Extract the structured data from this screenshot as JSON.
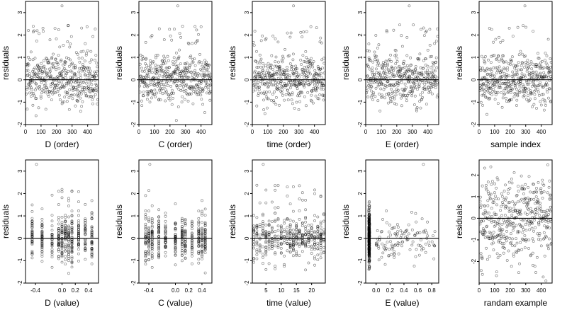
{
  "chart_data": [
    {
      "type": "scatter",
      "xlabel": "D (order)",
      "ylabel": "residuals",
      "xlim": [
        0,
        470
      ],
      "ylim": [
        -2,
        3.5
      ],
      "xticks": [
        0,
        100,
        200,
        300,
        400
      ],
      "xtick_labels": [
        "0",
        "100",
        "200",
        "300",
        "400"
      ],
      "yticks": [
        -2,
        -1,
        0,
        1,
        2,
        3
      ],
      "ytick_labels": [
        "-2",
        "-1",
        "0",
        "1",
        "2",
        "3"
      ],
      "hline": 0,
      "dist": "order",
      "seed": 11
    },
    {
      "type": "scatter",
      "xlabel": "C (order)",
      "ylabel": "residuals",
      "xlim": [
        0,
        470
      ],
      "ylim": [
        -2,
        3.5
      ],
      "xticks": [
        0,
        100,
        200,
        300,
        400
      ],
      "xtick_labels": [
        "0",
        "100",
        "200",
        "300",
        "400"
      ],
      "yticks": [
        -2,
        -1,
        0,
        1,
        2,
        3
      ],
      "ytick_labels": [
        "-2",
        "-1",
        "0",
        "1",
        "2",
        "3"
      ],
      "hline": 0,
      "dist": "order",
      "seed": 12
    },
    {
      "type": "scatter",
      "xlabel": "time (order)",
      "ylabel": "residuals",
      "xlim": [
        0,
        470
      ],
      "ylim": [
        -2,
        3.5
      ],
      "xticks": [
        0,
        100,
        200,
        300,
        400
      ],
      "xtick_labels": [
        "0",
        "100",
        "200",
        "300",
        "400"
      ],
      "yticks": [
        -2,
        -1,
        0,
        1,
        2,
        3
      ],
      "ytick_labels": [
        "-2",
        "-1",
        "0",
        "1",
        "2",
        "3"
      ],
      "hline": 0,
      "dist": "order",
      "seed": 13
    },
    {
      "type": "scatter",
      "xlabel": "E (order)",
      "ylabel": "residuals",
      "xlim": [
        0,
        470
      ],
      "ylim": [
        -2,
        3.5
      ],
      "xticks": [
        0,
        100,
        200,
        300,
        400
      ],
      "xtick_labels": [
        "0",
        "100",
        "200",
        "300",
        "400"
      ],
      "yticks": [
        -2,
        -1,
        0,
        1,
        2,
        3
      ],
      "ytick_labels": [
        "-2",
        "-1",
        "0",
        "1",
        "2",
        "3"
      ],
      "hline": 0,
      "dist": "order",
      "seed": 14
    },
    {
      "type": "scatter",
      "xlabel": "sample index",
      "ylabel": "residuals",
      "xlim": [
        0,
        470
      ],
      "ylim": [
        -2,
        3.5
      ],
      "xticks": [
        0,
        100,
        200,
        300,
        400
      ],
      "xtick_labels": [
        "0",
        "100",
        "200",
        "300",
        "400"
      ],
      "yticks": [
        -2,
        -1,
        0,
        1,
        2,
        3
      ],
      "ytick_labels": [
        "-2",
        "-1",
        "0",
        "1",
        "2",
        "3"
      ],
      "hline": 0,
      "dist": "order",
      "seed": 15
    },
    {
      "type": "scatter",
      "xlabel": "D (value)",
      "ylabel": "residuals",
      "xlim": [
        -0.55,
        0.55
      ],
      "ylim": [
        -2,
        3.5
      ],
      "xticks": [
        -0.4,
        0,
        0.2,
        0.4
      ],
      "xtick_labels": [
        "-0.4",
        "0.0",
        "0.2",
        "0.4"
      ],
      "yticks": [
        -2,
        -1,
        0,
        1,
        2,
        3
      ],
      "ytick_labels": [
        "-2",
        "-1",
        "0",
        "1",
        "2",
        "3"
      ],
      "hline": 0,
      "dist": "discrete",
      "levels": [
        -0.45,
        -0.3,
        -0.15,
        -0.05,
        0,
        0.05,
        0.1,
        0.15,
        0.25,
        0.35,
        0.45
      ],
      "seed": 21
    },
    {
      "type": "scatter",
      "xlabel": "C (value)",
      "ylabel": "residuals",
      "xlim": [
        -0.55,
        0.55
      ],
      "ylim": [
        -2,
        3.5
      ],
      "xticks": [
        -0.4,
        0,
        0.2,
        0.4
      ],
      "xtick_labels": [
        "-0.4",
        "0.0",
        "0.2",
        "0.4"
      ],
      "yticks": [
        -2,
        -1,
        0,
        1,
        2,
        3
      ],
      "ytick_labels": [
        "-2",
        "-1",
        "0",
        "1",
        "2",
        "3"
      ],
      "hline": 0,
      "dist": "discrete",
      "levels": [
        -0.45,
        -0.4,
        -0.35,
        -0.25,
        -0.15,
        0,
        0.1,
        0.15,
        0.25,
        0.35,
        0.4,
        0.45
      ],
      "seed": 22
    },
    {
      "type": "scatter",
      "xlabel": "time (value)",
      "ylabel": "residuals",
      "xlim": [
        0.5,
        24.5
      ],
      "ylim": [
        -2,
        3.5
      ],
      "xticks": [
        5,
        10,
        15,
        20
      ],
      "xtick_labels": [
        "5",
        "10",
        "15",
        "20"
      ],
      "yticks": [
        -2,
        -1,
        0,
        1,
        2,
        3
      ],
      "ytick_labels": [
        "-2",
        "-1",
        "0",
        "1",
        "2",
        "3"
      ],
      "hline": 0,
      "dist": "discrete",
      "levels": [
        1,
        2,
        3,
        4,
        5,
        6,
        7,
        8,
        9,
        10,
        11,
        12,
        13,
        14,
        15,
        16,
        17,
        18,
        19,
        20,
        21,
        22,
        23,
        24
      ],
      "seed": 23
    },
    {
      "type": "scatter",
      "xlabel": "E (value)",
      "ylabel": "residuals",
      "xlim": [
        -0.15,
        0.9
      ],
      "ylim": [
        -2,
        3.5
      ],
      "xticks": [
        0,
        0.2,
        0.4,
        0.6,
        0.8
      ],
      "xtick_labels": [
        "0.0",
        "0.2",
        "0.4",
        "0.6",
        "0.8"
      ],
      "yticks": [
        -2,
        -1,
        0,
        1,
        2,
        3
      ],
      "ytick_labels": [
        "-2",
        "-1",
        "0",
        "1",
        "2",
        "3"
      ],
      "hline": 0,
      "dist": "evalue",
      "seed": 24
    },
    {
      "type": "scatter",
      "xlabel": "randam example",
      "ylabel": "residuals",
      "xlim": [
        0,
        470
      ],
      "ylim": [
        -3,
        2.7
      ],
      "xticks": [
        0,
        100,
        200,
        300,
        400
      ],
      "xtick_labels": [
        "0",
        "100",
        "200",
        "300",
        "400"
      ],
      "yticks": [
        -2,
        -1,
        0,
        1,
        2
      ],
      "ytick_labels": [
        "-2",
        "-1",
        "0",
        "1",
        "2"
      ],
      "hline": 0,
      "dist": "random",
      "seed": 25
    }
  ]
}
